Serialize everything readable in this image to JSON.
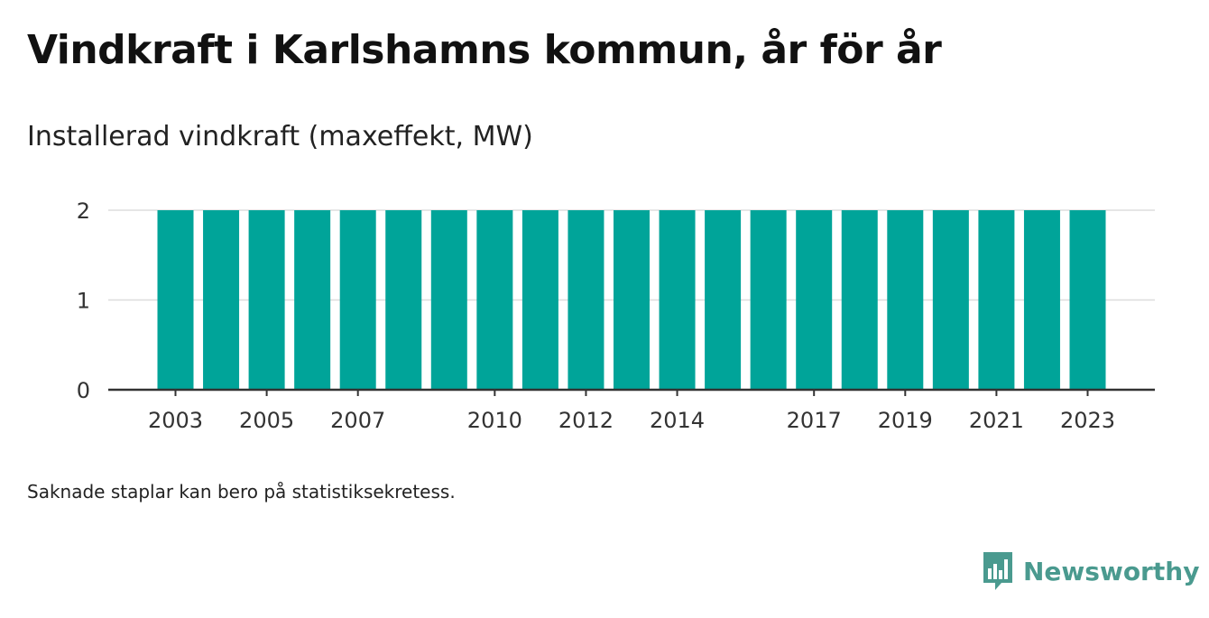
{
  "header": {
    "title": "Vindkraft i Karlshamns kommun, år för år",
    "subtitle": "Installerad vindkraft (maxeffekt, MW)"
  },
  "footer": {
    "note": "Saknade staplar kan bero på statistiksekretess.",
    "brand_name": "Newsworthy",
    "brand_icon": "newsworthy-logo-icon"
  },
  "colors": {
    "bar": "#00a499",
    "grid": "#dddddd",
    "axis": "#333333",
    "brand": "#4a9a8f"
  },
  "chart_data": {
    "type": "bar",
    "categories": [
      "2003",
      "2004",
      "2005",
      "2006",
      "2007",
      "2008",
      "2009",
      "2010",
      "2011",
      "2012",
      "2013",
      "2014",
      "2015",
      "2016",
      "2017",
      "2018",
      "2019",
      "2020",
      "2021",
      "2022",
      "2023"
    ],
    "values": [
      2,
      2,
      2,
      2,
      2,
      2,
      2,
      2,
      2,
      2,
      2,
      2,
      2,
      2,
      2,
      2,
      2,
      2,
      2,
      2,
      2
    ],
    "x_tick_labels": [
      "2003",
      "2005",
      "2007",
      "2010",
      "2012",
      "2014",
      "2017",
      "2019",
      "2021",
      "2023"
    ],
    "y_ticks": [
      0,
      1,
      2
    ],
    "ylim": [
      0,
      2
    ],
    "grid": true
  }
}
